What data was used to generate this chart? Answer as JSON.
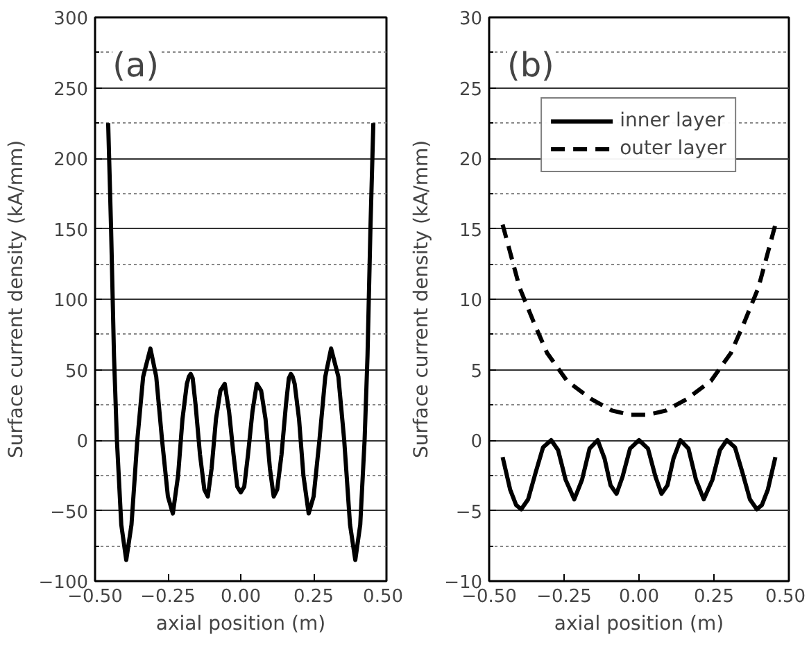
{
  "chart_data": [
    {
      "type": "line",
      "xlabel": "axial position (m)",
      "ylabel": "Surface current density (kA/mm)",
      "annotations": [
        "(a)"
      ],
      "xlim": [
        -0.5,
        0.5
      ],
      "xticks": [
        {
          "value": -0.5,
          "label": "−0.50"
        },
        {
          "value": -0.25,
          "label": "−0.25"
        },
        {
          "value": 0,
          "label": "0.00"
        },
        {
          "value": 0.25,
          "label": "0.25"
        },
        {
          "value": 0.5,
          "label": "0.50"
        }
      ],
      "ylim": [
        -100,
        300
      ],
      "yticks": [
        {
          "value": -100,
          "label": "−100"
        },
        {
          "value": -50,
          "label": "−50"
        },
        0,
        50,
        100,
        150,
        200,
        250,
        300
      ],
      "grid": "y",
      "legend": false,
      "series": [
        {
          "color": "#000000",
          "line_style": "solid",
          "x": [
            -0.455,
            -0.445,
            -0.435,
            -0.425,
            -0.41,
            -0.393,
            -0.375,
            -0.355,
            -0.335,
            -0.31,
            -0.29,
            -0.27,
            -0.25,
            -0.233,
            -0.215,
            -0.2,
            -0.185,
            -0.178,
            -0.172,
            -0.165,
            -0.155,
            -0.14,
            -0.125,
            -0.113,
            -0.1,
            -0.085,
            -0.07,
            -0.055,
            -0.04,
            -0.025,
            -0.012,
            0,
            0.012,
            0.025,
            0.04,
            0.055,
            0.07,
            0.085,
            0.1,
            0.113,
            0.125,
            0.14,
            0.155,
            0.165,
            0.172,
            0.178,
            0.185,
            0.2,
            0.215,
            0.233,
            0.25,
            0.27,
            0.29,
            0.31,
            0.335,
            0.355,
            0.375,
            0.393,
            0.41,
            0.425,
            0.435,
            0.445,
            0.455
          ],
          "values": [
            225,
            150,
            60,
            0,
            -60,
            -85,
            -60,
            0,
            45,
            65,
            45,
            0,
            -40,
            -52,
            -25,
            15,
            40,
            45,
            47,
            44,
            25,
            -10,
            -35,
            -40,
            -20,
            15,
            35,
            40,
            20,
            -10,
            -33,
            -37,
            -33,
            -10,
            20,
            40,
            35,
            15,
            -20,
            -40,
            -35,
            -10,
            25,
            44,
            47,
            45,
            40,
            15,
            -25,
            -52,
            -40,
            0,
            45,
            65,
            45,
            0,
            -60,
            -85,
            -60,
            0,
            60,
            150,
            225
          ]
        }
      ]
    },
    {
      "type": "line",
      "xlabel": "axial position (m)",
      "ylabel": "Surface current density (kA/mm)",
      "annotations": [
        "(b)"
      ],
      "xlim": [
        -0.5,
        0.5
      ],
      "xticks": [
        {
          "value": -0.5,
          "label": "−0.50"
        },
        {
          "value": -0.25,
          "label": "−0.25"
        },
        {
          "value": 0,
          "label": "0.00"
        },
        {
          "value": 0.25,
          "label": "0.25"
        },
        {
          "value": 0.5,
          "label": "0.50"
        }
      ],
      "ylim": [
        -10,
        30
      ],
      "yticks": [
        {
          "value": -10,
          "label": "−10"
        },
        {
          "value": -5,
          "label": "−5"
        },
        0,
        5,
        10,
        15,
        20,
        25,
        30
      ],
      "grid": "y",
      "legend": "top",
      "series": [
        {
          "name": "inner layer",
          "color": "#000000",
          "line_style": "solid",
          "x": [
            -0.455,
            -0.43,
            -0.41,
            -0.393,
            -0.37,
            -0.345,
            -0.32,
            -0.293,
            -0.27,
            -0.245,
            -0.216,
            -0.19,
            -0.165,
            -0.138,
            -0.115,
            -0.095,
            -0.075,
            -0.055,
            -0.03,
            0,
            0.03,
            0.055,
            0.075,
            0.095,
            0.115,
            0.138,
            0.165,
            0.19,
            0.216,
            0.245,
            0.27,
            0.293,
            0.32,
            0.345,
            0.37,
            0.393,
            0.41,
            0.43,
            0.455
          ],
          "values": [
            -1.2,
            -3.5,
            -4.6,
            -4.9,
            -4.2,
            -2.3,
            -0.5,
            0,
            -0.7,
            -2.8,
            -4.2,
            -2.8,
            -0.6,
            0,
            -1.3,
            -3.2,
            -3.8,
            -2.6,
            -0.6,
            0,
            -0.6,
            -2.6,
            -3.8,
            -3.2,
            -1.3,
            0,
            -0.6,
            -2.8,
            -4.2,
            -2.8,
            -0.7,
            0,
            -0.5,
            -2.3,
            -4.2,
            -4.9,
            -4.6,
            -3.5,
            -1.2
          ]
        },
        {
          "name": "outer layer",
          "color": "#000000",
          "line_style": "dashed",
          "x": [
            -0.455,
            -0.398,
            -0.35,
            -0.307,
            -0.24,
            -0.158,
            -0.09,
            -0.03,
            0,
            0.03,
            0.09,
            0.158,
            0.24,
            0.307,
            0.35,
            0.398,
            0.455
          ],
          "values": [
            15.3,
            10.8,
            8.3,
            6.2,
            4.2,
            2.9,
            2.1,
            1.8,
            1.8,
            1.8,
            2.1,
            2.9,
            4.2,
            6.2,
            8.3,
            10.8,
            15.3
          ]
        }
      ]
    }
  ]
}
